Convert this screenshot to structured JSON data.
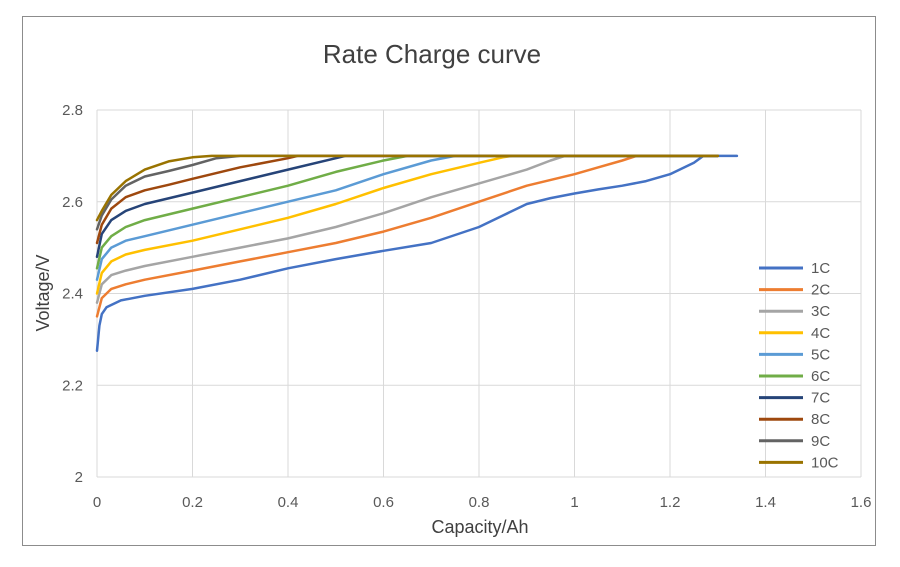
{
  "chart_data": {
    "type": "line",
    "title": "Rate Charge curve",
    "xlabel": "Capacity/Ah",
    "ylabel": "Voltage/V",
    "xlim": [
      0,
      1.6
    ],
    "ylim": [
      2.0,
      2.8
    ],
    "x_ticks": [
      "0",
      "0.2",
      "0.4",
      "0.6",
      "0.8",
      "1",
      "1.2",
      "1.4",
      "1.6"
    ],
    "x_tick_values": [
      0,
      0.2,
      0.4,
      0.6,
      0.8,
      1.0,
      1.2,
      1.4,
      1.6
    ],
    "y_ticks": [
      "2",
      "2.2",
      "2.4",
      "2.6",
      "2.8"
    ],
    "y_tick_values": [
      2.0,
      2.2,
      2.4,
      2.6,
      2.8
    ],
    "grid": true,
    "legend_position": "right",
    "series": [
      {
        "name": "1C",
        "color": "#4472C4",
        "x": [
          0,
          0.005,
          0.01,
          0.02,
          0.05,
          0.1,
          0.2,
          0.3,
          0.4,
          0.5,
          0.6,
          0.7,
          0.8,
          0.85,
          0.9,
          0.95,
          1.0,
          1.05,
          1.1,
          1.15,
          1.2,
          1.25,
          1.27,
          1.34
        ],
        "y": [
          2.275,
          2.33,
          2.355,
          2.37,
          2.385,
          2.395,
          2.41,
          2.43,
          2.455,
          2.475,
          2.493,
          2.51,
          2.545,
          2.57,
          2.595,
          2.608,
          2.618,
          2.627,
          2.635,
          2.645,
          2.66,
          2.685,
          2.7,
          2.7
        ]
      },
      {
        "name": "2C",
        "color": "#ED7D31",
        "x": [
          0,
          0.01,
          0.03,
          0.06,
          0.1,
          0.2,
          0.3,
          0.4,
          0.5,
          0.6,
          0.7,
          0.8,
          0.9,
          1.0,
          1.05,
          1.1,
          1.13,
          1.3
        ],
        "y": [
          2.35,
          2.39,
          2.41,
          2.42,
          2.43,
          2.45,
          2.47,
          2.49,
          2.51,
          2.535,
          2.565,
          2.6,
          2.635,
          2.66,
          2.675,
          2.69,
          2.7,
          2.7
        ]
      },
      {
        "name": "3C",
        "color": "#A5A5A5",
        "x": [
          0,
          0.01,
          0.03,
          0.06,
          0.1,
          0.2,
          0.3,
          0.4,
          0.5,
          0.6,
          0.7,
          0.8,
          0.9,
          0.95,
          0.98,
          1.3
        ],
        "y": [
          2.38,
          2.42,
          2.44,
          2.45,
          2.46,
          2.48,
          2.5,
          2.52,
          2.545,
          2.575,
          2.61,
          2.64,
          2.67,
          2.69,
          2.7,
          2.7
        ]
      },
      {
        "name": "4C",
        "color": "#FFC000",
        "x": [
          0,
          0.01,
          0.03,
          0.06,
          0.1,
          0.2,
          0.3,
          0.4,
          0.5,
          0.6,
          0.7,
          0.8,
          0.85,
          0.87,
          1.3
        ],
        "y": [
          2.4,
          2.445,
          2.47,
          2.485,
          2.495,
          2.515,
          2.54,
          2.565,
          2.595,
          2.63,
          2.66,
          2.685,
          2.697,
          2.7,
          2.7
        ]
      },
      {
        "name": "5C",
        "color": "#5B9BD5",
        "x": [
          0,
          0.01,
          0.03,
          0.06,
          0.1,
          0.2,
          0.3,
          0.4,
          0.5,
          0.6,
          0.7,
          0.75,
          1.3
        ],
        "y": [
          2.43,
          2.475,
          2.5,
          2.515,
          2.525,
          2.55,
          2.575,
          2.6,
          2.625,
          2.66,
          2.69,
          2.7,
          2.7
        ]
      },
      {
        "name": "6C",
        "color": "#70AD47",
        "x": [
          0,
          0.01,
          0.03,
          0.06,
          0.1,
          0.2,
          0.3,
          0.4,
          0.5,
          0.6,
          0.65,
          1.3
        ],
        "y": [
          2.455,
          2.5,
          2.525,
          2.545,
          2.56,
          2.585,
          2.61,
          2.635,
          2.665,
          2.69,
          2.7,
          2.7
        ]
      },
      {
        "name": "7C",
        "color": "#264478",
        "x": [
          0,
          0.01,
          0.03,
          0.06,
          0.1,
          0.2,
          0.3,
          0.4,
          0.5,
          0.52,
          1.3
        ],
        "y": [
          2.48,
          2.53,
          2.56,
          2.58,
          2.595,
          2.62,
          2.645,
          2.67,
          2.695,
          2.7,
          2.7
        ]
      },
      {
        "name": "8C",
        "color": "#9E480E",
        "x": [
          0,
          0.01,
          0.03,
          0.06,
          0.1,
          0.15,
          0.2,
          0.3,
          0.4,
          0.42,
          1.3
        ],
        "y": [
          2.51,
          2.55,
          2.585,
          2.61,
          2.625,
          2.637,
          2.65,
          2.675,
          2.695,
          2.7,
          2.7
        ]
      },
      {
        "name": "9C",
        "color": "#636363",
        "x": [
          0,
          0.01,
          0.03,
          0.06,
          0.1,
          0.15,
          0.2,
          0.25,
          0.3,
          1.3
        ],
        "y": [
          2.54,
          2.57,
          2.605,
          2.635,
          2.655,
          2.667,
          2.68,
          2.695,
          2.7,
          2.7
        ]
      },
      {
        "name": "10C",
        "color": "#997300",
        "x": [
          0,
          0.01,
          0.03,
          0.06,
          0.1,
          0.15,
          0.2,
          0.24,
          0.28,
          1.3
        ],
        "y": [
          2.56,
          2.58,
          2.615,
          2.645,
          2.67,
          2.688,
          2.697,
          2.7,
          2.7,
          2.7
        ]
      }
    ]
  }
}
